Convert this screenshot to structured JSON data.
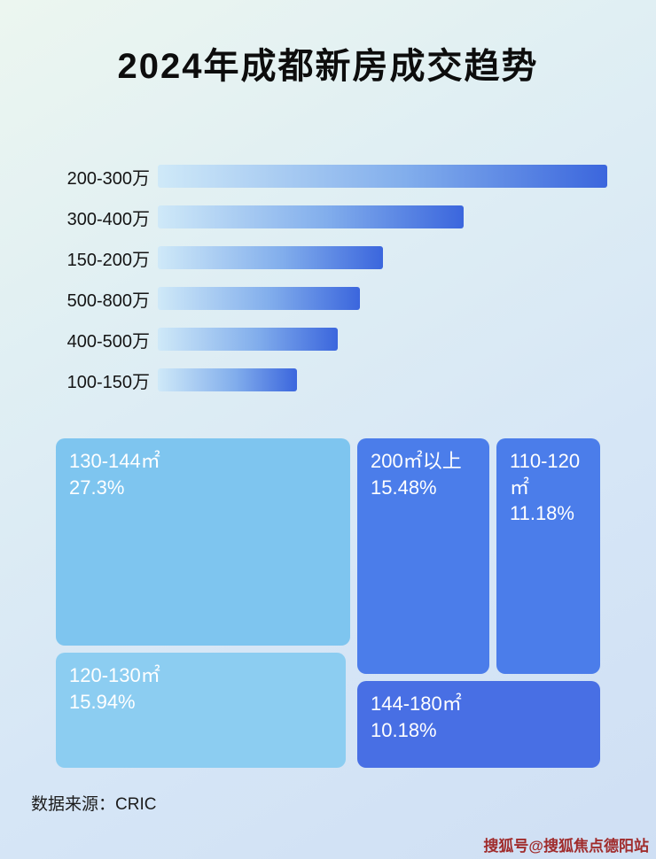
{
  "page": {
    "title": "2024年成都新房成交趋势",
    "source_label": "数据来源：CRIC",
    "watermark": "搜狐号@搜狐焦点德阳站"
  },
  "colors": {
    "bar_gradient_start": "#cfe9f8",
    "bar_gradient_end": "#3b66dd",
    "treemap_light_blue": "#7ec5ef",
    "treemap_lighter_blue": "#8ccdf1",
    "treemap_medium_blue": "#4b7dea",
    "treemap_deep_blue": "#486fe4",
    "watermark_red": "#a02c2c"
  },
  "chart_data": [
    {
      "type": "bar",
      "orientation": "horizontal",
      "title": "2024年成都新房成交趋势",
      "categories": [
        "200-300万",
        "300-400万",
        "150-200万",
        "500-800万",
        "400-500万",
        "100-150万"
      ],
      "values": [
        100,
        68,
        50,
        45,
        40,
        31
      ],
      "value_note": "relative bar lengths as % of longest bar; no numeric value labels shown in image",
      "xlabel": "",
      "ylabel": "",
      "grid": false,
      "legend": false
    },
    {
      "type": "treemap",
      "title": "",
      "items": [
        {
          "label": "130-144㎡",
          "percent_text": "27.3%",
          "value": 27.3
        },
        {
          "label": "200㎡以上",
          "percent_text": "15.48%",
          "value": 15.48
        },
        {
          "label": "110-120㎡",
          "percent_text": "11.18%",
          "value": 11.18
        },
        {
          "label": "120-130㎡",
          "percent_text": "15.94%",
          "value": 15.94
        },
        {
          "label": "144-180㎡",
          "percent_text": "10.18%",
          "value": 10.18
        }
      ]
    }
  ]
}
